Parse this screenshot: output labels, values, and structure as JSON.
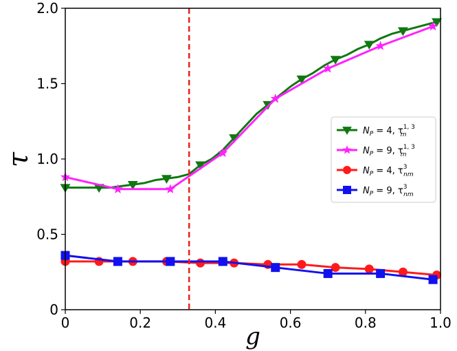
{
  "chart_data": {
    "type": "line",
    "title": "",
    "xlabel": "g",
    "ylabel": "τ",
    "xlim": [
      0,
      1.0
    ],
    "ylim": [
      0,
      2.0
    ],
    "x_ticks": [
      0,
      0.2,
      0.4,
      0.6,
      0.8,
      1.0
    ],
    "x_tick_labels": [
      "0",
      "0.2",
      "0.4",
      "0.6",
      "0.8",
      "1.0"
    ],
    "y_ticks": [
      0,
      0.5,
      1.0,
      1.5,
      2.0
    ],
    "y_tick_labels": [
      "0",
      "0.5",
      "1.0",
      "1.5",
      "2.0"
    ],
    "grid": false,
    "legend_position": "right",
    "vline": {
      "x": 0.33,
      "color": "#e8221b",
      "style": "dashed"
    },
    "series": [
      {
        "name": "N_P = 4, τ_m^{1,3}",
        "legend": {
          "pre": "N",
          "pre_sub": "P",
          "mid": " = 4, τ",
          "sup": "1, 3",
          "sub": "m"
        },
        "color": "#107810",
        "marker": "triangle-down",
        "line_x": [
          0,
          0.03,
          0.06,
          0.09,
          0.12,
          0.15,
          0.18,
          0.21,
          0.24,
          0.27,
          0.3,
          0.33,
          0.36,
          0.39,
          0.42,
          0.45,
          0.48,
          0.51,
          0.54,
          0.57,
          0.6,
          0.63,
          0.66,
          0.69,
          0.72,
          0.75,
          0.78,
          0.81,
          0.84,
          0.87,
          0.9,
          0.93,
          0.96,
          0.99
        ],
        "line_y": [
          0.81,
          0.81,
          0.81,
          0.81,
          0.81,
          0.82,
          0.83,
          0.84,
          0.86,
          0.87,
          0.88,
          0.9,
          0.96,
          1.0,
          1.06,
          1.14,
          1.22,
          1.3,
          1.36,
          1.42,
          1.48,
          1.53,
          1.57,
          1.62,
          1.66,
          1.69,
          1.73,
          1.76,
          1.8,
          1.83,
          1.85,
          1.87,
          1.89,
          1.91
        ],
        "marker_x": [
          0,
          0.09,
          0.18,
          0.27,
          0.36,
          0.45,
          0.54,
          0.63,
          0.72,
          0.81,
          0.9,
          0.99
        ],
        "marker_y": [
          0.81,
          0.81,
          0.83,
          0.87,
          0.96,
          1.14,
          1.36,
          1.53,
          1.66,
          1.76,
          1.85,
          1.91
        ]
      },
      {
        "name": "N_P = 9, τ_m^{1,3}",
        "legend": {
          "pre": "N",
          "pre_sub": "P",
          "mid": " = 9, τ",
          "sup": "1, 3",
          "sub": "m"
        },
        "color": "#ff22ff",
        "marker": "star",
        "line_x": [
          0,
          0.14,
          0.28,
          0.42,
          0.56,
          0.7,
          0.84,
          0.98
        ],
        "line_y": [
          0.88,
          0.8,
          0.8,
          1.04,
          1.4,
          1.6,
          1.75,
          1.88
        ],
        "marker_x": [
          0,
          0.14,
          0.28,
          0.42,
          0.56,
          0.7,
          0.84,
          0.98
        ],
        "marker_y": [
          0.88,
          0.8,
          0.8,
          1.04,
          1.4,
          1.6,
          1.75,
          1.88
        ]
      },
      {
        "name": "N_P = 4, τ_nm^3",
        "legend": {
          "pre": "N",
          "pre_sub": "P",
          "mid": " = 4, τ",
          "sup": "3",
          "sub": "nm"
        },
        "color": "#ff1a1a",
        "marker": "circle",
        "line_x": [
          0,
          0.09,
          0.18,
          0.27,
          0.36,
          0.45,
          0.54,
          0.63,
          0.72,
          0.81,
          0.9,
          0.99
        ],
        "line_y": [
          0.32,
          0.32,
          0.32,
          0.32,
          0.31,
          0.31,
          0.3,
          0.3,
          0.28,
          0.27,
          0.25,
          0.23
        ],
        "marker_x": [
          0,
          0.09,
          0.18,
          0.27,
          0.36,
          0.45,
          0.54,
          0.63,
          0.72,
          0.81,
          0.9,
          0.99
        ],
        "marker_y": [
          0.32,
          0.32,
          0.32,
          0.32,
          0.31,
          0.31,
          0.3,
          0.3,
          0.28,
          0.27,
          0.25,
          0.23
        ]
      },
      {
        "name": "N_P = 9, τ_nm^3",
        "legend": {
          "pre": "N",
          "pre_sub": "P",
          "mid": " = 9, τ",
          "sup": "3",
          "sub": "nm"
        },
        "color": "#1111ee",
        "marker": "square",
        "line_x": [
          0,
          0.14,
          0.28,
          0.42,
          0.56,
          0.7,
          0.84,
          0.98
        ],
        "line_y": [
          0.36,
          0.32,
          0.32,
          0.32,
          0.28,
          0.24,
          0.24,
          0.2
        ],
        "marker_x": [
          0,
          0.14,
          0.28,
          0.42,
          0.56,
          0.7,
          0.84,
          0.98
        ],
        "marker_y": [
          0.36,
          0.32,
          0.32,
          0.32,
          0.28,
          0.24,
          0.24,
          0.2
        ]
      }
    ]
  }
}
